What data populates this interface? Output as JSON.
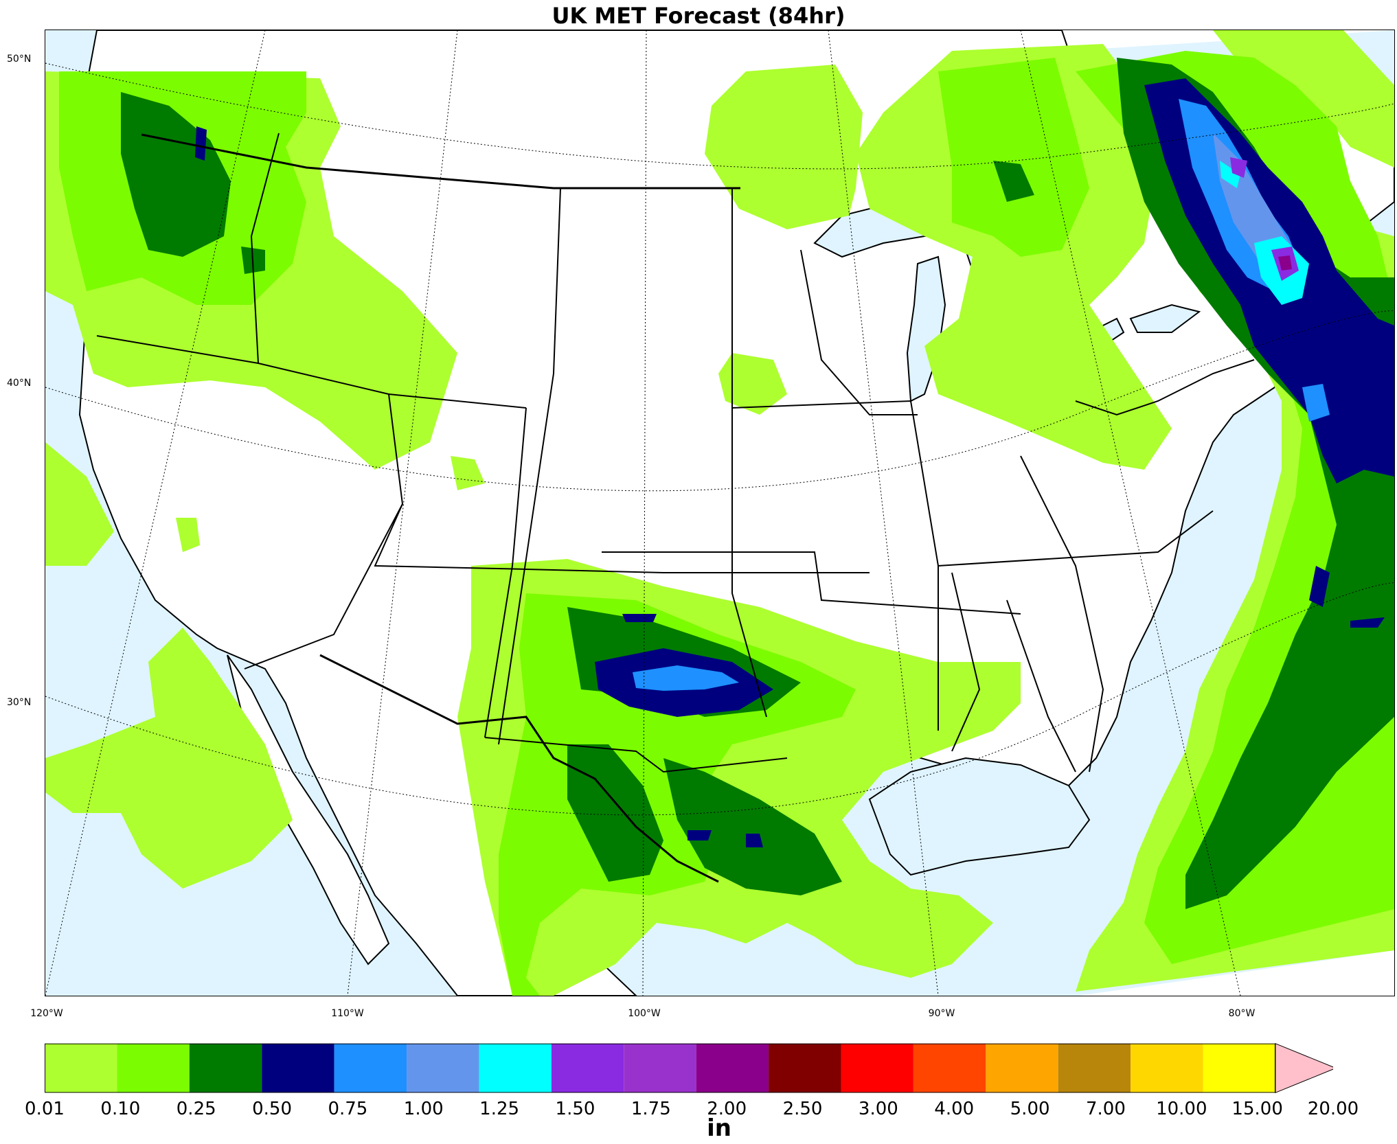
{
  "title": "UK MET Forecast (84hr)",
  "map": {
    "lat_labels": [
      "50°N",
      "40°N",
      "30°N"
    ],
    "lon_labels": [
      "120°W",
      "110°W",
      "100°W",
      "90°W",
      "80°W"
    ],
    "ocean_color": "#dff4ff",
    "land_color": "#ffffff"
  },
  "colorbar": {
    "unit": "in",
    "ticks": [
      "0.01",
      "0.10",
      "0.25",
      "0.50",
      "0.75",
      "1.00",
      "1.25",
      "1.50",
      "1.75",
      "2.00",
      "2.50",
      "3.00",
      "4.00",
      "5.00",
      "7.00",
      "10.00",
      "15.00",
      "20.00"
    ],
    "colors": [
      "#adff2f",
      "#7cfc00",
      "#007b00",
      "#00007f",
      "#1e90ff",
      "#6495ed",
      "#00ffff",
      "#8a2be2",
      "#9932cc",
      "#8b008b",
      "#800000",
      "#ff0000",
      "#ff4500",
      "#ffa500",
      "#b8860b",
      "#ffd700",
      "#ffff00"
    ],
    "extend_color": "#ffc0cb"
  }
}
